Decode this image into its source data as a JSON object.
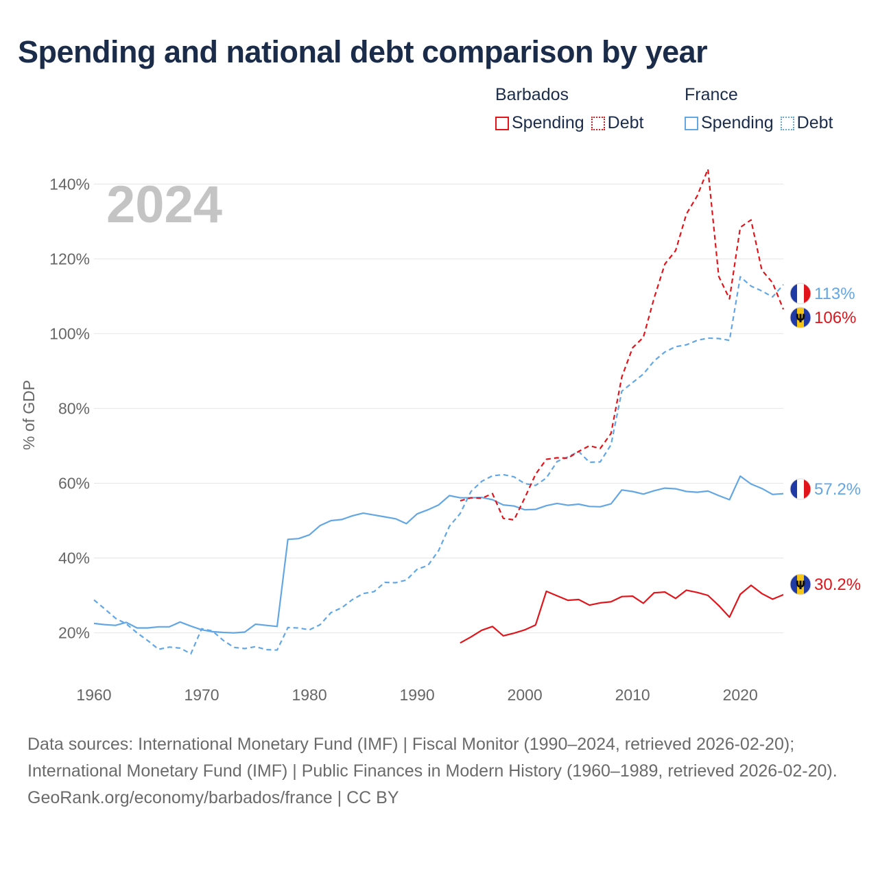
{
  "title": "Spending and national debt comparison by year",
  "legend": {
    "groups": [
      {
        "country": "Barbados",
        "items": [
          {
            "label": "Spending",
            "style": "solid",
            "color": "#e0141a"
          },
          {
            "label": "Debt",
            "style": "dotted",
            "color": "#e0141a"
          }
        ]
      },
      {
        "country": "France",
        "items": [
          {
            "label": "Spending",
            "style": "solid",
            "color": "#62a6e4"
          },
          {
            "label": "Debt",
            "style": "dotted",
            "color": "#62a6e4"
          }
        ]
      }
    ]
  },
  "footer": {
    "sources": "Data sources: International Monetary Fund (IMF) | Fiscal Monitor (1990–2024, retrieved 2026-02-20); International Monetary Fund (IMF) | Public Finances in Modern History (1960–1989, retrieved 2026-02-20).",
    "site": "GeoRank.org/economy/barbados/france | CC BY"
  },
  "chart_data": {
    "type": "line",
    "title": "Spending and national debt comparison by year",
    "year_label": "2024",
    "xlabel": "",
    "ylabel": "% of GDP",
    "xlim": [
      1960,
      2024
    ],
    "ylim": [
      8,
      145
    ],
    "x_ticks": [
      1960,
      1970,
      1980,
      1990,
      2000,
      2010,
      2020
    ],
    "y_ticks": [
      20,
      40,
      60,
      80,
      100,
      120,
      140
    ],
    "y_tick_labels": [
      "20%",
      "40%",
      "60%",
      "80%",
      "100%",
      "120%",
      "140%"
    ],
    "grid": true,
    "colors": {
      "barbados": "#e0141a",
      "france": "#62a6e4"
    },
    "series": [
      {
        "name": "France Spending",
        "country": "france",
        "dashed": false,
        "end_label": "57.2%",
        "x": [
          1960,
          1961,
          1962,
          1963,
          1964,
          1965,
          1966,
          1967,
          1968,
          1969,
          1970,
          1971,
          1972,
          1973,
          1974,
          1975,
          1976,
          1977,
          1978,
          1979,
          1980,
          1981,
          1982,
          1983,
          1984,
          1985,
          1986,
          1987,
          1988,
          1989,
          1990,
          1991,
          1992,
          1993,
          1994,
          1995,
          1996,
          1997,
          1998,
          1999,
          2000,
          2001,
          2002,
          2003,
          2004,
          2005,
          2006,
          2007,
          2008,
          2009,
          2010,
          2011,
          2012,
          2013,
          2014,
          2015,
          2016,
          2017,
          2018,
          2019,
          2020,
          2021,
          2022,
          2023,
          2024
        ],
        "values": [
          22.5,
          22.2,
          22.0,
          22.8,
          21.3,
          21.3,
          21.6,
          21.6,
          22.9,
          21.8,
          20.8,
          20.3,
          20.1,
          20.0,
          20.2,
          22.3,
          22.0,
          21.7,
          45.0,
          45.2,
          46.2,
          48.7,
          50.0,
          50.3,
          51.3,
          52.0,
          51.5,
          51.0,
          50.5,
          49.2,
          51.8,
          52.9,
          54.2,
          56.7,
          56.1,
          56.1,
          56.2,
          55.6,
          54.2,
          53.9,
          52.9,
          53.0,
          54.0,
          54.6,
          54.1,
          54.4,
          53.8,
          53.7,
          54.5,
          58.2,
          57.8,
          57.1,
          58.0,
          58.7,
          58.5,
          57.8,
          57.6,
          57.9,
          56.7,
          55.6,
          61.9,
          59.8,
          58.6,
          57.0,
          57.2
        ]
      },
      {
        "name": "France Debt",
        "country": "france",
        "dashed": true,
        "end_label": "113%",
        "x": [
          1960,
          1961,
          1962,
          1963,
          1964,
          1965,
          1966,
          1967,
          1968,
          1969,
          1970,
          1971,
          1972,
          1973,
          1974,
          1975,
          1976,
          1977,
          1978,
          1979,
          1980,
          1981,
          1982,
          1983,
          1984,
          1985,
          1986,
          1987,
          1988,
          1989,
          1990,
          1991,
          1992,
          1993,
          1994,
          1995,
          1996,
          1997,
          1998,
          1999,
          2000,
          2001,
          2002,
          2003,
          2004,
          2005,
          2006,
          2007,
          2008,
          2009,
          2010,
          2011,
          2012,
          2013,
          2014,
          2015,
          2016,
          2017,
          2018,
          2019,
          2020,
          2021,
          2022,
          2023,
          2024
        ],
        "values": [
          28.8,
          26.4,
          23.9,
          22.4,
          20.0,
          17.9,
          15.6,
          16.2,
          15.9,
          14.4,
          21.1,
          20.5,
          18.0,
          16.1,
          15.8,
          16.3,
          15.5,
          15.4,
          21.4,
          21.3,
          20.8,
          22.2,
          25.4,
          26.7,
          28.9,
          30.5,
          31.0,
          33.5,
          33.4,
          34.1,
          37.0,
          38.0,
          42.0,
          48.5,
          51.9,
          57.8,
          60.5,
          62.0,
          62.3,
          61.7,
          59.9,
          59.4,
          61.4,
          65.8,
          67.0,
          68.5,
          65.6,
          65.7,
          70.3,
          84.6,
          86.9,
          89.2,
          92.7,
          95.1,
          96.5,
          97.0,
          98.2,
          98.8,
          98.7,
          98.2,
          115.2,
          112.7,
          111.4,
          109.8,
          113.1
        ]
      },
      {
        "name": "Barbados Spending",
        "country": "barbados",
        "dashed": false,
        "end_label": "30.2%",
        "x": [
          1994,
          1995,
          1996,
          1997,
          1998,
          1999,
          2000,
          2001,
          2002,
          2003,
          2004,
          2005,
          2006,
          2007,
          2008,
          2009,
          2010,
          2011,
          2012,
          2013,
          2014,
          2015,
          2016,
          2017,
          2018,
          2019,
          2020,
          2021,
          2022,
          2023,
          2024
        ],
        "values": [
          17.3,
          18.9,
          20.7,
          21.7,
          19.2,
          19.9,
          20.8,
          22.1,
          31.1,
          29.9,
          28.7,
          28.9,
          27.4,
          28.0,
          28.3,
          29.7,
          29.8,
          27.9,
          30.7,
          30.9,
          29.2,
          31.4,
          30.8,
          30.0,
          27.3,
          24.2,
          30.3,
          32.7,
          30.5,
          29.0,
          30.2
        ]
      },
      {
        "name": "Barbados Debt",
        "country": "barbados",
        "dashed": true,
        "end_label": "106%",
        "x": [
          1994,
          1995,
          1996,
          1997,
          1998,
          1999,
          2000,
          2001,
          2002,
          2003,
          2004,
          2005,
          2006,
          2007,
          2008,
          2009,
          2010,
          2011,
          2012,
          2013,
          2014,
          2015,
          2016,
          2017,
          2018,
          2019,
          2020,
          2021,
          2022,
          2023,
          2024
        ],
        "values": [
          55.3,
          56.1,
          56.0,
          57.2,
          50.6,
          50.2,
          56.1,
          62.4,
          66.4,
          66.8,
          66.7,
          68.5,
          70.0,
          69.3,
          73.3,
          88.4,
          96.2,
          99.0,
          109.5,
          118.6,
          122.2,
          132.0,
          136.8,
          144.0,
          115.3,
          109.3,
          128.4,
          130.4,
          117.0,
          113.6,
          106.5
        ]
      }
    ]
  }
}
